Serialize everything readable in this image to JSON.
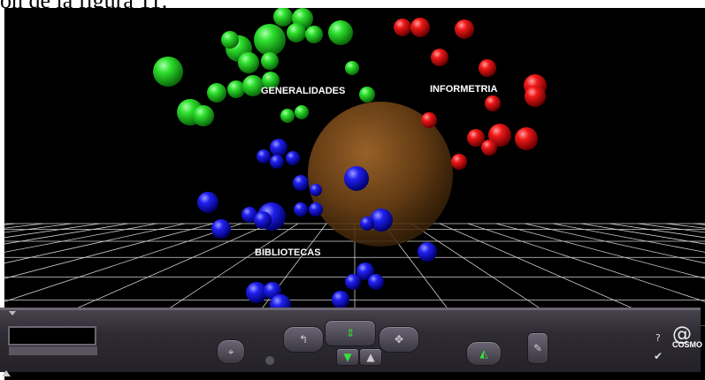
{
  "caption": "on de la figura 11:",
  "scene": {
    "labels": {
      "generalidades": "GENERALIDADES",
      "informetria": "INFORMETRIA",
      "bibliotecas": "BIBLIOTECAS"
    },
    "cluster_colors": {
      "generalidades": "#1fd41f",
      "informetria": "#e01010",
      "bibliotecas": "#1a1ae6",
      "core": "#7a4a1c"
    }
  },
  "toolbar": {
    "help": "?",
    "brand": "COSMO",
    "icons": {
      "target": "crosshair-icon",
      "walk_left": "walk-icon",
      "forward": "forward-icon",
      "pan": "pan-arrows-icon",
      "down": "down-arrow-icon",
      "up": "up-arrow-icon",
      "tilt": "tilt-icon",
      "edit": "pencil-icon",
      "check": "check-icon",
      "logo": "cosmo-swirl-icon"
    }
  }
}
